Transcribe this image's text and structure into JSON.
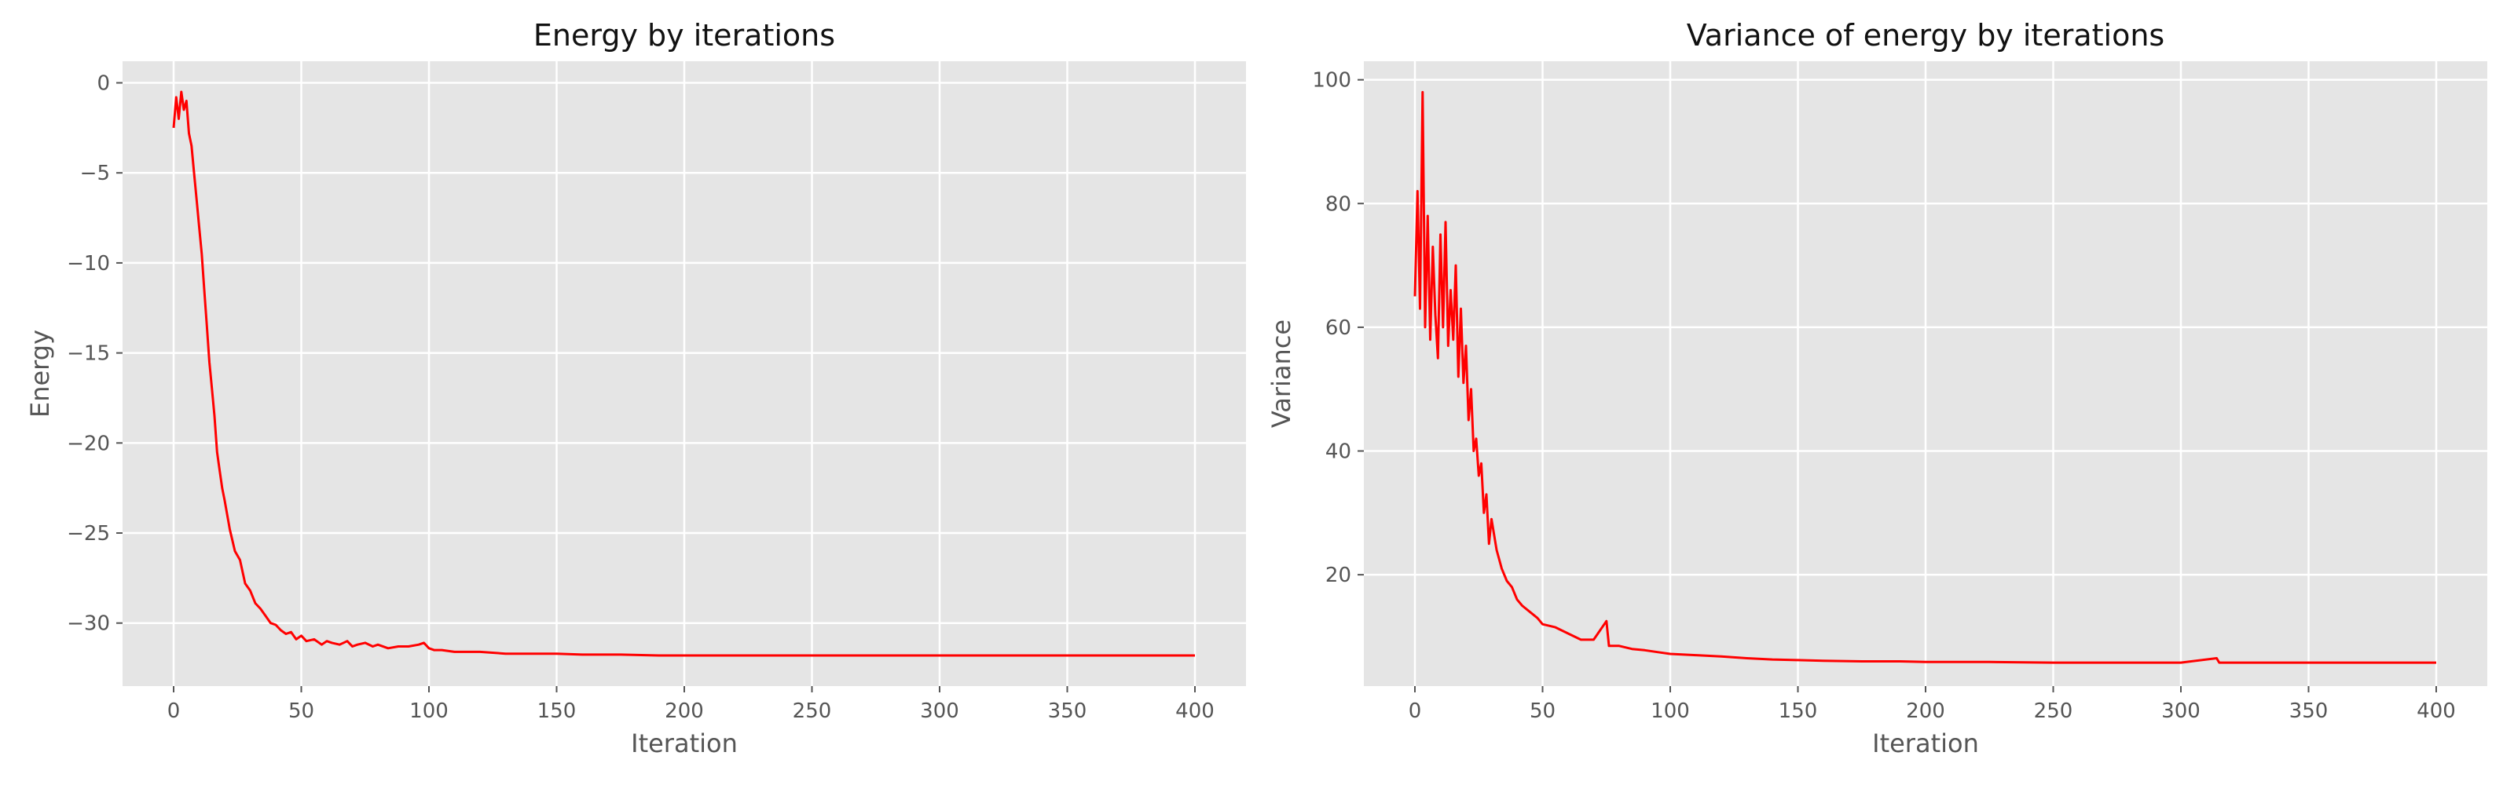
{
  "colors": {
    "plot_background": "#e5e5e5",
    "grid": "#ffffff",
    "series": "#ff0000",
    "text": "#555555"
  },
  "chart_data": [
    {
      "type": "line",
      "title": "Energy by iterations",
      "xlabel": "Iteration",
      "ylabel": "Energy",
      "xlim": [
        -20,
        420
      ],
      "ylim": [
        -33.5,
        1.2
      ],
      "grid": true,
      "xticks": [
        0,
        50,
        100,
        150,
        200,
        250,
        300,
        350,
        400
      ],
      "yticks": [
        0,
        -5,
        -10,
        -15,
        -20,
        -25,
        -30
      ],
      "series": [
        {
          "color": "#ff0000",
          "x": [
            0,
            1,
            2,
            3,
            4,
            5,
            6,
            7,
            8,
            9,
            10,
            11,
            12,
            13,
            14,
            15,
            16,
            17,
            18,
            19,
            20,
            22,
            24,
            26,
            28,
            30,
            32,
            34,
            36,
            38,
            40,
            42,
            44,
            46,
            48,
            50,
            52,
            55,
            58,
            60,
            62,
            65,
            68,
            70,
            72,
            75,
            78,
            80,
            84,
            88,
            92,
            96,
            98,
            100,
            102,
            105,
            110,
            115,
            120,
            130,
            140,
            150,
            160,
            175,
            190,
            200,
            225,
            250,
            275,
            300,
            325,
            350,
            375,
            400
          ],
          "y": [
            -2.5,
            -0.8,
            -2.0,
            -0.5,
            -1.5,
            -1.0,
            -2.8,
            -3.5,
            -5.0,
            -6.5,
            -8.0,
            -9.5,
            -11.5,
            -13.5,
            -15.5,
            -17.0,
            -18.5,
            -20.5,
            -21.5,
            -22.5,
            -23.2,
            -24.8,
            -26.0,
            -26.5,
            -27.8,
            -28.2,
            -28.9,
            -29.2,
            -29.6,
            -30.0,
            -30.1,
            -30.4,
            -30.6,
            -30.5,
            -30.9,
            -30.7,
            -31.0,
            -30.9,
            -31.2,
            -31.0,
            -31.1,
            -31.2,
            -31.0,
            -31.3,
            -31.2,
            -31.1,
            -31.3,
            -31.2,
            -31.4,
            -31.3,
            -31.3,
            -31.2,
            -31.1,
            -31.4,
            -31.5,
            -31.5,
            -31.6,
            -31.6,
            -31.6,
            -31.7,
            -31.7,
            -31.7,
            -31.75,
            -31.75,
            -31.8,
            -31.8,
            -31.8,
            -31.8,
            -31.8,
            -31.8,
            -31.8,
            -31.8,
            -31.8,
            -31.8
          ]
        }
      ]
    },
    {
      "type": "line",
      "title": "Variance of energy by iterations",
      "xlabel": "Iteration",
      "ylabel": "Variance",
      "xlim": [
        -20,
        420
      ],
      "ylim": [
        2,
        103
      ],
      "grid": true,
      "xticks": [
        0,
        50,
        100,
        150,
        200,
        250,
        300,
        350,
        400
      ],
      "yticks": [
        20,
        40,
        60,
        80,
        100
      ],
      "series": [
        {
          "color": "#ff0000",
          "x": [
            0,
            1,
            2,
            3,
            4,
            5,
            6,
            7,
            8,
            9,
            10,
            11,
            12,
            13,
            14,
            15,
            16,
            17,
            18,
            19,
            20,
            21,
            22,
            23,
            24,
            25,
            26,
            27,
            28,
            29,
            30,
            32,
            34,
            36,
            38,
            40,
            42,
            45,
            48,
            50,
            55,
            60,
            65,
            70,
            75,
            76,
            80,
            85,
            90,
            95,
            100,
            110,
            120,
            130,
            140,
            150,
            160,
            175,
            190,
            200,
            225,
            250,
            275,
            300,
            314,
            315,
            330,
            350,
            375,
            400
          ],
          "y": [
            65,
            82,
            63,
            98,
            60,
            78,
            58,
            73,
            62,
            55,
            75,
            60,
            77,
            57,
            66,
            58,
            70,
            52,
            63,
            51,
            57,
            45,
            50,
            40,
            42,
            36,
            38,
            30,
            33,
            25,
            29,
            24,
            21,
            19,
            18,
            16,
            15,
            14,
            13,
            12,
            11.5,
            10.5,
            9.5,
            9.5,
            12.5,
            8.5,
            8.5,
            8,
            7.8,
            7.5,
            7.2,
            7,
            6.8,
            6.5,
            6.3,
            6.2,
            6.1,
            6,
            6,
            5.9,
            5.9,
            5.8,
            5.8,
            5.8,
            6.5,
            5.8,
            5.8,
            5.8,
            5.8,
            5.8
          ]
        }
      ]
    }
  ]
}
